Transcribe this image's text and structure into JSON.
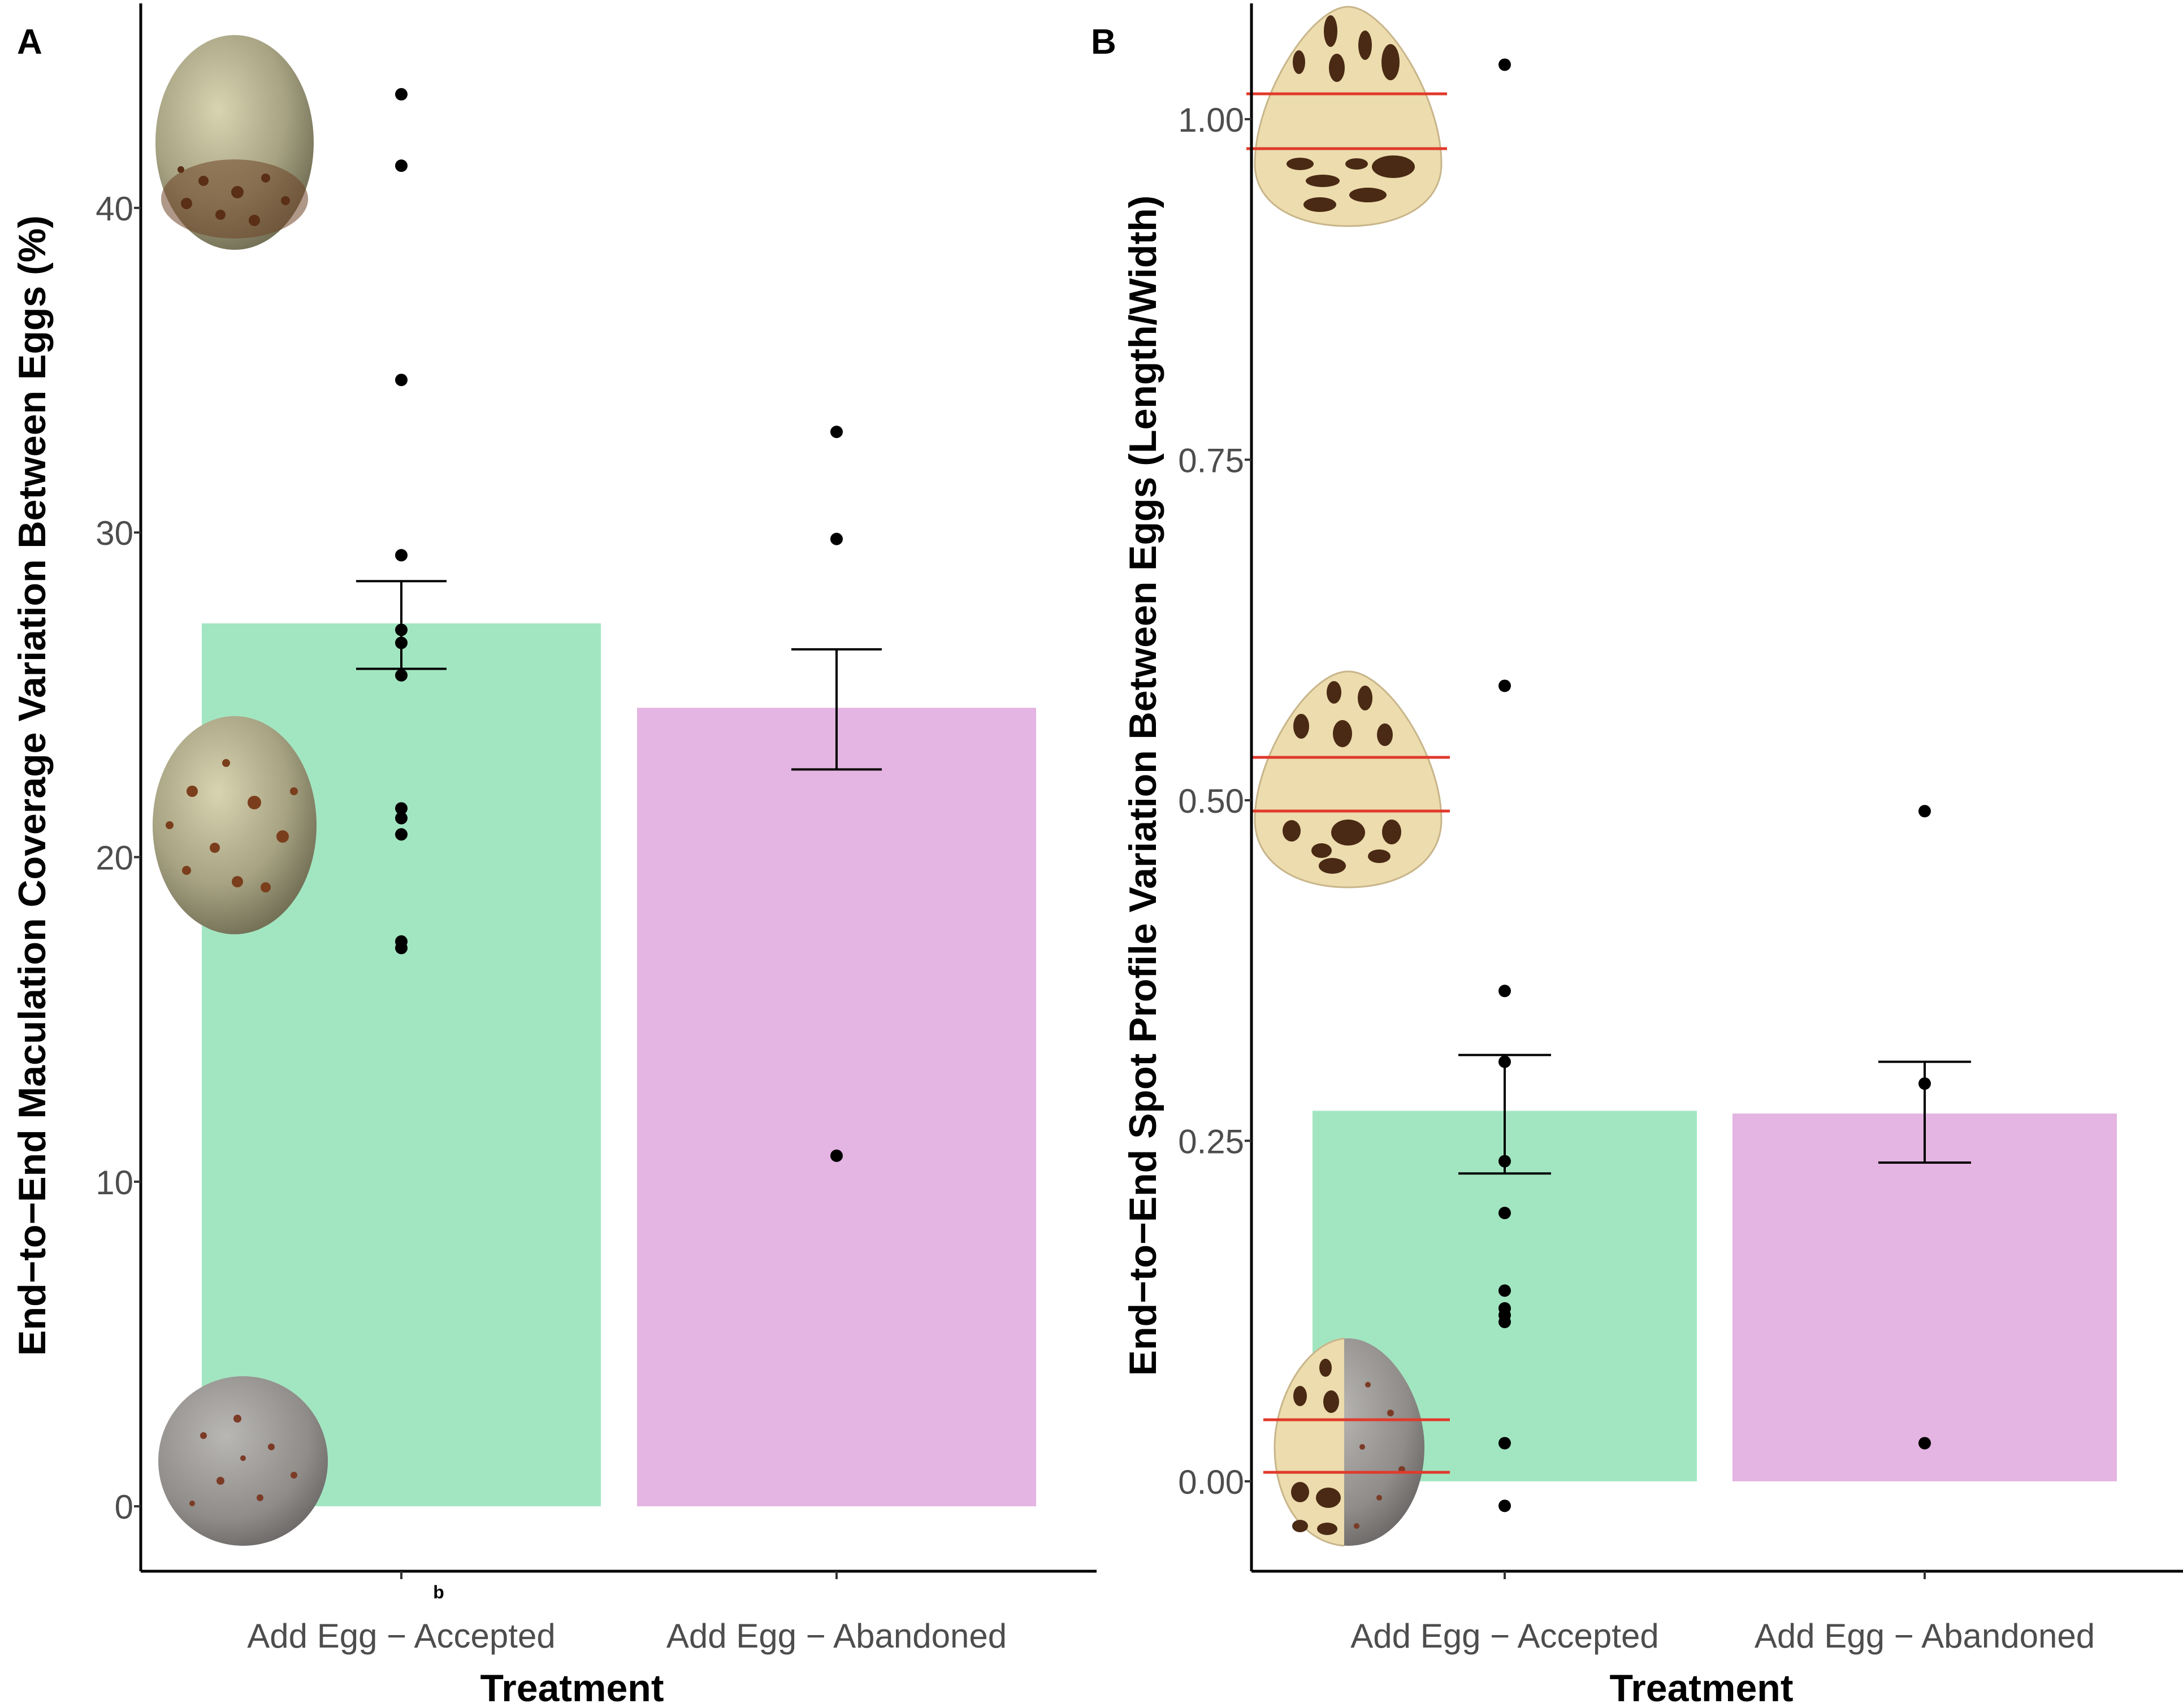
{
  "figure": {
    "panels": [
      {
        "label": "A"
      },
      {
        "label": "B"
      }
    ],
    "stray_label": "b"
  },
  "colors": {
    "accepted": "#a2e6c1",
    "abandoned": "#e4b4e2",
    "axis": "#000000",
    "tick_text": "#4d4d4d",
    "guide_line": "#e03a2b",
    "egg_fill": "#ecdcae",
    "egg_spot": "#4a2a14"
  },
  "chart_data": [
    {
      "type": "bar",
      "panel": "A",
      "title": "",
      "xlabel": "Treatment",
      "ylabel": "End−to−End Maculation Coverage Variation Between Eggs (%)",
      "categories": [
        "Add Egg − Accepted",
        "Add Egg − Abandoned"
      ],
      "values": [
        27.2,
        24.6
      ],
      "error_low": [
        25.8,
        22.7
      ],
      "error_high": [
        28.5,
        26.4
      ],
      "points": [
        [
          43.5,
          41.3,
          34.7,
          29.3,
          27.0,
          26.6,
          25.6,
          21.5,
          21.2,
          20.7,
          17.4,
          17.2
        ],
        [
          33.1,
          29.8,
          10.8
        ]
      ],
      "yticks": [
        0,
        10,
        20,
        30,
        40
      ],
      "ytick_labels": [
        "0",
        "10",
        "20",
        "30",
        "40"
      ],
      "ylim": [
        -2,
        46.3
      ],
      "images": [
        "egg-photo-top",
        "egg-photo-middle",
        "egg-photo-bottom"
      ]
    },
    {
      "type": "bar",
      "panel": "B",
      "title": "",
      "xlabel": "Treatment",
      "ylabel": "End−to−End Spot Profile Variation Between Eggs (Length/Width)",
      "categories": [
        "Add Egg − Accepted",
        "Add Egg − Abandoned"
      ],
      "values": [
        0.272,
        0.27
      ],
      "error_low": [
        0.226,
        0.234
      ],
      "error_high": [
        0.313,
        0.308
      ],
      "points": [
        [
          1.04,
          0.584,
          0.36,
          0.308,
          0.235,
          0.197,
          0.14,
          0.127,
          0.122,
          0.117,
          0.028,
          -0.018
        ],
        [
          0.492,
          0.292,
          0.028
        ]
      ],
      "yticks": [
        0.0,
        0.25,
        0.5,
        0.75,
        1.0
      ],
      "ytick_labels": [
        "0.00",
        "0.25",
        "0.50",
        "0.75",
        "1.00"
      ],
      "ylim": [
        -0.066,
        1.085
      ],
      "images": [
        "egg-diagram-top",
        "egg-diagram-middle",
        "egg-diagram-bottom"
      ]
    }
  ]
}
